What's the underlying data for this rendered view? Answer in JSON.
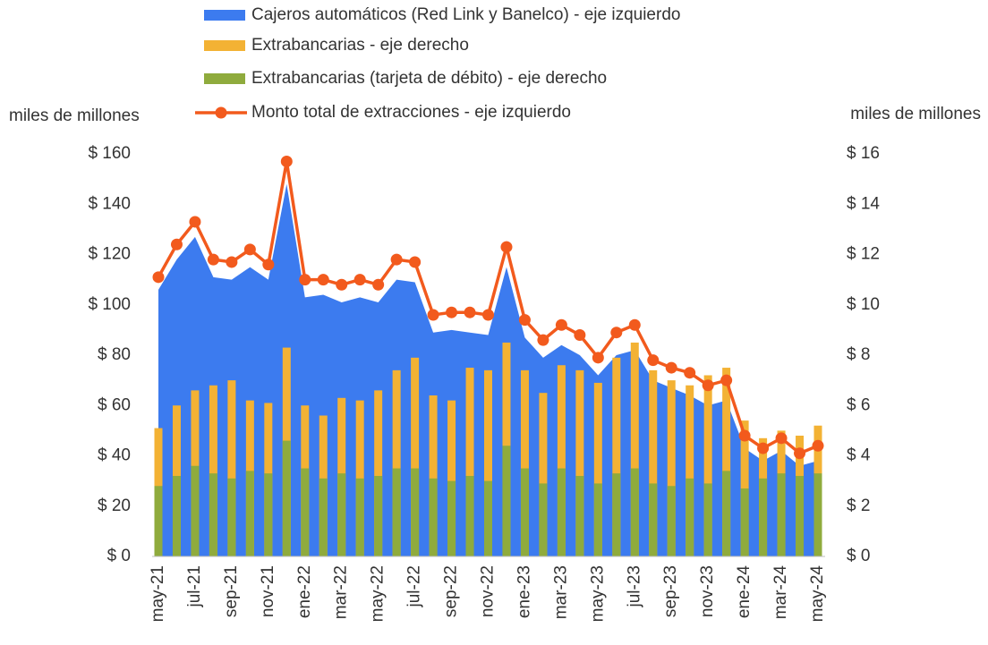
{
  "chart_data": {
    "type": "combo",
    "y_label": "miles de millones",
    "y2_label": "miles de millones",
    "categories": [
      "may-21",
      null,
      "jul-21",
      null,
      "sep-21",
      null,
      "nov-21",
      null,
      "ene-22",
      null,
      "mar-22",
      null,
      "may-22",
      null,
      "jul-22",
      null,
      "sep-22",
      null,
      "nov-22",
      null,
      "ene-23",
      null,
      "mar-23",
      null,
      "may-23",
      null,
      "jul-23",
      null,
      "sep-23",
      null,
      "nov-23",
      null,
      "ene-24",
      null,
      "mar-24",
      null,
      "may-24"
    ],
    "ylim": [
      0,
      160
    ],
    "yticks": [
      {
        "value": 0,
        "label": "$ 0"
      },
      {
        "value": 20,
        "label": "$ 20"
      },
      {
        "value": 40,
        "label": "$ 40"
      },
      {
        "value": 60,
        "label": "$ 60"
      },
      {
        "value": 80,
        "label": "$ 80"
      },
      {
        "value": 100,
        "label": "$ 100"
      },
      {
        "value": 120,
        "label": "$ 120"
      },
      {
        "value": 140,
        "label": "$ 140"
      },
      {
        "value": 160,
        "label": "$ 160"
      }
    ],
    "y2lim": [
      0,
      16
    ],
    "y2ticks": [
      {
        "value": 0,
        "label": "$ 0"
      },
      {
        "value": 2,
        "label": "$ 2"
      },
      {
        "value": 4,
        "label": "$ 4"
      },
      {
        "value": 6,
        "label": "$ 6"
      },
      {
        "value": 8,
        "label": "$ 8"
      },
      {
        "value": 10,
        "label": "$ 10"
      },
      {
        "value": 12,
        "label": "$ 12"
      },
      {
        "value": 14,
        "label": "$ 14"
      },
      {
        "value": 16,
        "label": "$ 16"
      }
    ],
    "series": [
      {
        "name": "Cajeros automáticos (Red Link y Banelco) - eje izquierdo",
        "type": "area",
        "axis": "y",
        "color": "#3c7bef",
        "values": [
          106,
          118,
          127,
          111,
          110,
          115,
          110,
          148,
          103,
          104,
          101,
          103,
          101,
          110,
          109,
          89,
          90,
          89,
          88,
          115,
          87,
          79,
          84,
          80,
          72,
          80,
          82,
          70,
          67,
          64,
          60,
          62,
          43,
          38,
          42,
          36,
          38
        ]
      },
      {
        "name": "Extrabancarias - eje derecho",
        "type": "bar",
        "axis": "y2",
        "color": "#f3b234",
        "values": [
          5.1,
          6.0,
          6.6,
          6.8,
          7.0,
          6.2,
          6.1,
          8.3,
          6.0,
          5.6,
          6.3,
          6.2,
          6.6,
          7.4,
          7.9,
          6.4,
          6.2,
          7.5,
          7.4,
          8.5,
          7.4,
          6.5,
          7.6,
          7.4,
          6.9,
          7.9,
          8.5,
          7.4,
          7.0,
          6.8,
          7.2,
          7.5,
          5.4,
          4.7,
          5.0,
          4.8,
          5.2
        ]
      },
      {
        "name": "Extrabancarias (tarjeta de débito) - eje derecho",
        "type": "bar",
        "axis": "y2",
        "color": "#8fab3d",
        "values": [
          2.8,
          3.2,
          3.6,
          3.3,
          3.1,
          3.4,
          3.3,
          4.6,
          3.5,
          3.1,
          3.3,
          3.1,
          3.2,
          3.5,
          3.5,
          3.1,
          3.0,
          3.2,
          3.0,
          4.4,
          3.5,
          2.9,
          3.5,
          3.2,
          2.9,
          3.3,
          3.5,
          2.9,
          2.8,
          3.1,
          2.9,
          3.4,
          2.7,
          3.1,
          3.3,
          3.2,
          3.3
        ]
      },
      {
        "name": "Monto total de extracciones - eje izquierdo",
        "type": "line",
        "axis": "y",
        "color": "#f25a1d",
        "values": [
          111,
          124,
          133,
          118,
          117,
          122,
          116,
          157,
          110,
          110,
          108,
          110,
          108,
          118,
          117,
          96,
          97,
          97,
          96,
          123,
          94,
          86,
          92,
          88,
          79,
          89,
          92,
          78,
          75,
          73,
          68,
          70,
          48,
          43,
          47,
          41,
          44
        ]
      }
    ]
  }
}
